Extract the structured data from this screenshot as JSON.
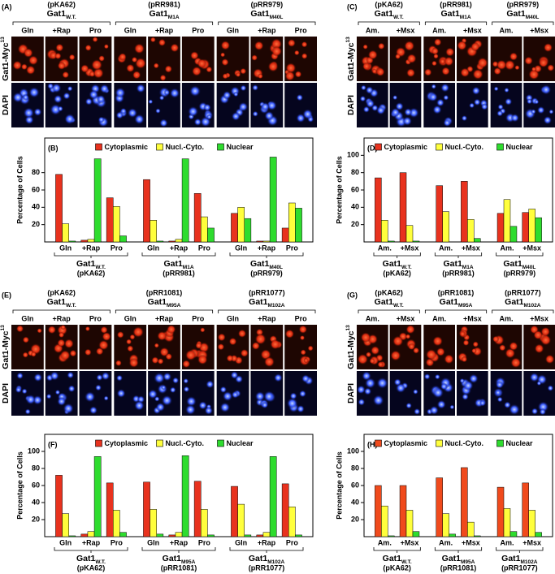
{
  "panels": [
    {
      "label": "(A)",
      "groups": [
        {
          "plasmid": "(pKA62)",
          "name": "Gat1",
          "subscript": "W.T."
        },
        {
          "plasmid": "(pRR981)",
          "name": "Gat1",
          "subscript": "M1A"
        },
        {
          "plasmid": "(pRR979)",
          "name": "Gat1",
          "subscript": "M40L"
        }
      ],
      "conditions": [
        "Gln",
        "+Rap",
        "Pro"
      ],
      "rows": [
        {
          "name": "Gat1-Myc",
          "superscript": "13"
        },
        {
          "name": "DAPI"
        }
      ]
    },
    {
      "label": "(C)",
      "groups": [
        {
          "plasmid": "(pKA62)",
          "name": "Gat1",
          "subscript": "W.T."
        },
        {
          "plasmid": "(pRR981)",
          "name": "Gat1",
          "subscript": "M1A"
        },
        {
          "plasmid": "(pRR979)",
          "name": "Gat1",
          "subscript": "M40L"
        }
      ],
      "conditions": [
        "Am.",
        "+Msx"
      ],
      "rows": [
        {
          "name": "Gat1-Myc",
          "superscript": "13"
        },
        {
          "name": "DAPI"
        }
      ]
    },
    {
      "label": "(E)",
      "groups": [
        {
          "plasmid": "(pKA62)",
          "name": "Gat1",
          "subscript": "W.T."
        },
        {
          "plasmid": "(pRR1081)",
          "name": "Gat1",
          "subscript": "M95A"
        },
        {
          "plasmid": "(pRR1077)",
          "name": "Gat1",
          "subscript": "M102A"
        }
      ],
      "conditions": [
        "Gln",
        "+Rap",
        "Pro"
      ],
      "rows": [
        {
          "name": "Gat1-Myc",
          "superscript": "13"
        },
        {
          "name": "DAPI"
        }
      ]
    },
    {
      "label": "(G)",
      "groups": [
        {
          "plasmid": "(pKA62)",
          "name": "Gat1",
          "subscript": "W.T."
        },
        {
          "plasmid": "(pRR1081)",
          "name": "Gat1",
          "subscript": "M95A"
        },
        {
          "plasmid": "(pRR1077)",
          "name": "Gat1",
          "subscript": "M102A"
        }
      ],
      "conditions": [
        "Am.",
        "+Msx"
      ],
      "rows": [
        {
          "name": "Gat1-Myc",
          "superscript": "13"
        },
        {
          "name": "DAPI"
        }
      ]
    }
  ],
  "chart_data": [
    {
      "type": "bar",
      "panel_label": "(B)",
      "ylabel": "Percentage of Cells",
      "categories": [
        "Gln",
        "+Rap",
        "Pro",
        "Gln",
        "+Rap",
        "Pro",
        "Gln",
        "+Rap",
        "Pro"
      ],
      "groups": [
        {
          "name": "Gat1",
          "subscript": "W.T.",
          "plasmid": "(pKA62)"
        },
        {
          "name": "Gat1",
          "subscript": "M1A",
          "plasmid": "(pRR981)"
        },
        {
          "name": "Gat1",
          "subscript": "M40L",
          "plasmid": "(pRR979)"
        }
      ],
      "series": [
        {
          "name": "Cytoplasmic",
          "color": "#e8321e",
          "values": [
            78,
            2,
            51,
            72,
            1,
            56,
            33,
            1,
            16
          ]
        },
        {
          "name": "Nucl.-Cyto.",
          "color": "#ffff3c",
          "values": [
            21,
            3,
            41,
            25,
            3,
            29,
            40,
            1,
            45
          ]
        },
        {
          "name": "Nuclear",
          "color": "#2edc2e",
          "values": [
            1,
            96,
            7,
            1,
            96,
            16,
            27,
            98,
            39
          ]
        }
      ],
      "ylim": [
        0,
        120
      ],
      "yticks": [
        20,
        40,
        60,
        80
      ]
    },
    {
      "type": "bar",
      "panel_label": "(D)",
      "ylabel": "Percentage of Cells",
      "categories": [
        "Am.",
        "+Msx",
        "Am.",
        "+Msx",
        "Am.",
        "+Msx"
      ],
      "groups": [
        {
          "name": "Gat1",
          "subscript": "W.T.",
          "plasmid": "(pKA62)"
        },
        {
          "name": "Gat1",
          "subscript": "M1A",
          "plasmid": "(pRR981)"
        },
        {
          "name": "Gat1",
          "subscript": "M40L",
          "plasmid": "(pRR979)"
        }
      ],
      "series": [
        {
          "name": "Cytoplasmic",
          "color": "#e8321e",
          "values": [
            74,
            80,
            65,
            70,
            33,
            34
          ]
        },
        {
          "name": "Nucl.-Cyto.",
          "color": "#ffff3c",
          "values": [
            25,
            19,
            35,
            26,
            49,
            38
          ]
        },
        {
          "name": "Nuclear",
          "color": "#2edc2e",
          "values": [
            1,
            1,
            0,
            4,
            18,
            28
          ]
        }
      ],
      "ylim": [
        0,
        120
      ],
      "yticks": [
        20,
        40,
        60,
        80,
        100
      ]
    },
    {
      "type": "bar",
      "panel_label": "(F)",
      "ylabel": "Percentage of Cells",
      "categories": [
        "Gln",
        "+Rap",
        "Pro",
        "Gln",
        "+Rap",
        "Pro",
        "Gln",
        "+Rap",
        "Pro"
      ],
      "groups": [
        {
          "name": "Gat1",
          "subscript": "W.T.",
          "plasmid": "(pKA62)"
        },
        {
          "name": "Gat1",
          "subscript": "M95A",
          "plasmid": "(pRR1081)"
        },
        {
          "name": "Gat1",
          "subscript": "M102A",
          "plasmid": "(pRR1077)"
        }
      ],
      "series": [
        {
          "name": "Cytoplasmic",
          "color": "#e8321e",
          "values": [
            72,
            3,
            63,
            64,
            2,
            65,
            59,
            2,
            62
          ]
        },
        {
          "name": "Nucl.-Cyto.",
          "color": "#ffff3c",
          "values": [
            27,
            6,
            31,
            32,
            5,
            32,
            38,
            5,
            35
          ]
        },
        {
          "name": "Nuclear",
          "color": "#2edc2e",
          "values": [
            1,
            94,
            5,
            3,
            95,
            2,
            2,
            94,
            2
          ]
        }
      ],
      "ylim": [
        0,
        120
      ],
      "yticks": [
        20,
        40,
        60,
        80,
        100
      ]
    },
    {
      "type": "bar",
      "panel_label": "(H)",
      "ylabel": "Percentage of Cells",
      "categories": [
        "Am.",
        "+Msx",
        "Am.",
        "+Msx",
        "Am.",
        "+Msx"
      ],
      "groups": [
        {
          "name": "Gat1",
          "subscript": "W.T.",
          "plasmid": "(pKA62)"
        },
        {
          "name": "Gat1",
          "subscript": "M95A",
          "plasmid": "(pRR1081)"
        },
        {
          "name": "Gat1",
          "subscript": "M102A",
          "plasmid": "(pRR1077)"
        }
      ],
      "series": [
        {
          "name": "Cytoplasmic",
          "color": "#f04a1c",
          "values": [
            60,
            60,
            69,
            81,
            58,
            63
          ]
        },
        {
          "name": "Nucl.-Cyto.",
          "color": "#ffff3c",
          "values": [
            36,
            31,
            27,
            17,
            33,
            31
          ]
        },
        {
          "name": "Nuclear",
          "color": "#2edc2e",
          "values": [
            1,
            6,
            3,
            1,
            6,
            5
          ]
        }
      ],
      "ylim": [
        0,
        120
      ],
      "yticks": [
        20,
        40,
        60,
        80,
        100
      ]
    }
  ]
}
